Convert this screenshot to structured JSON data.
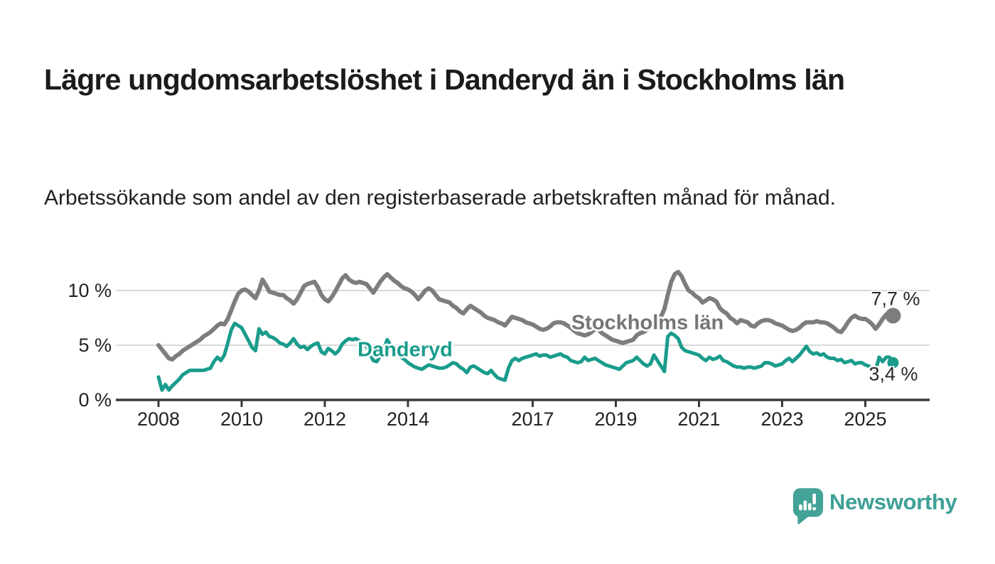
{
  "title": "Lägre ungdomsarbetslöshet i Danderyd än i Stockholms län",
  "subtitle": "Arbetssökande som andel av den registerbaserade arbetskraften månad för månad.",
  "branding": {
    "wordmark": "Newsworthy",
    "logo_icon": "newsworthy-speech-bubble-bar-chart-icon"
  },
  "colors": {
    "danderyd_line": "#1a9c8c",
    "stockholm_line": "#7d7d7d",
    "stockholm_label": "#757575",
    "gridline": "#d9d9d9",
    "axis": "#3a3a3a",
    "tick_text": "#222222",
    "annotation_text": "#2a2a2a",
    "logo_teal": "#43a396"
  },
  "chart_data": {
    "type": "line",
    "unit": "%",
    "frequency": "monthly",
    "x_start": "2008-01",
    "x_end": "2025-09",
    "grid": "horizontal",
    "ylim": [
      0,
      12.3
    ],
    "x_ticks": [
      {
        "year": 2008,
        "label": "2008"
      },
      {
        "year": 2010,
        "label": "2010"
      },
      {
        "year": 2012,
        "label": "2012"
      },
      {
        "year": 2014,
        "label": "2014"
      },
      {
        "year": 2017,
        "label": "2017"
      },
      {
        "year": 2019,
        "label": "2019"
      },
      {
        "year": 2021,
        "label": "2021"
      },
      {
        "year": 2023,
        "label": "2023"
      },
      {
        "year": 2025,
        "label": "2025"
      }
    ],
    "y_ticks": [
      {
        "value": 0,
        "label": "0 %"
      },
      {
        "value": 5,
        "label": "5 %"
      },
      {
        "value": 10,
        "label": "10 %"
      }
    ],
    "series": [
      {
        "name": "Stockholms län",
        "color": "#7d7d7d",
        "end_label": "7,7 %",
        "end_value": 7.7,
        "values": [
          5.0,
          4.6,
          4.2,
          3.8,
          3.7,
          4.0,
          4.2,
          4.5,
          4.7,
          4.9,
          5.1,
          5.3,
          5.5,
          5.8,
          6.0,
          6.2,
          6.5,
          6.8,
          7.0,
          6.9,
          7.4,
          8.2,
          9.0,
          9.7,
          10.0,
          10.1,
          9.9,
          9.6,
          9.3,
          10.0,
          11.0,
          10.5,
          9.9,
          9.8,
          9.7,
          9.6,
          9.6,
          9.3,
          9.1,
          8.8,
          9.2,
          9.8,
          10.4,
          10.6,
          10.7,
          10.8,
          10.3,
          9.6,
          9.2,
          9.0,
          9.4,
          9.9,
          10.5,
          11.1,
          11.4,
          11.0,
          10.8,
          10.7,
          10.8,
          10.7,
          10.6,
          10.2,
          9.8,
          10.3,
          10.8,
          11.2,
          11.5,
          11.2,
          10.9,
          10.7,
          10.4,
          10.2,
          10.1,
          9.9,
          9.6,
          9.2,
          9.6,
          10.0,
          10.2,
          10.0,
          9.6,
          9.2,
          9.1,
          9.0,
          8.9,
          8.6,
          8.4,
          8.1,
          7.9,
          8.3,
          8.6,
          8.4,
          8.2,
          8.0,
          7.7,
          7.5,
          7.4,
          7.3,
          7.1,
          7.0,
          6.8,
          7.2,
          7.6,
          7.5,
          7.4,
          7.3,
          7.1,
          7.0,
          6.9,
          6.7,
          6.5,
          6.4,
          6.5,
          6.7,
          7.0,
          7.1,
          7.1,
          7.0,
          6.8,
          6.6,
          6.3,
          6.1,
          6.0,
          5.9,
          6.0,
          6.2,
          6.5,
          6.4,
          6.1,
          5.9,
          5.7,
          5.5,
          5.4,
          5.3,
          5.2,
          5.3,
          5.4,
          5.5,
          5.9,
          6.1,
          6.2,
          6.4,
          6.6,
          6.9,
          7.3,
          7.6,
          8.3,
          9.6,
          10.8,
          11.5,
          11.7,
          11.3,
          10.6,
          10.0,
          9.8,
          9.5,
          9.3,
          8.9,
          9.1,
          9.3,
          9.2,
          9.0,
          8.4,
          8.1,
          7.9,
          7.5,
          7.3,
          7.0,
          7.3,
          7.2,
          7.1,
          6.8,
          6.7,
          7.0,
          7.2,
          7.3,
          7.3,
          7.2,
          7.0,
          6.9,
          6.8,
          6.6,
          6.4,
          6.3,
          6.4,
          6.6,
          6.9,
          7.1,
          7.1,
          7.1,
          7.2,
          7.1,
          7.1,
          7.0,
          6.8,
          6.6,
          6.3,
          6.2,
          6.6,
          7.1,
          7.5,
          7.7,
          7.5,
          7.4,
          7.4,
          7.2,
          6.9,
          6.5,
          6.9,
          7.4,
          7.8,
          8.0,
          7.7
        ]
      },
      {
        "name": "Danderyd",
        "color": "#1a9c8c",
        "end_label": "3,4 %",
        "end_value": 3.4,
        "values": [
          2.1,
          0.9,
          1.4,
          0.9,
          1.3,
          1.6,
          1.9,
          2.3,
          2.5,
          2.7,
          2.7,
          2.7,
          2.7,
          2.7,
          2.8,
          2.9,
          3.5,
          3.9,
          3.6,
          4.1,
          5.2,
          6.4,
          7.0,
          6.8,
          6.6,
          6.0,
          5.4,
          4.8,
          4.5,
          6.5,
          6.0,
          6.2,
          5.8,
          5.7,
          5.5,
          5.2,
          5.1,
          4.9,
          5.2,
          5.6,
          5.1,
          4.8,
          4.9,
          4.6,
          4.9,
          5.1,
          5.2,
          4.4,
          4.2,
          4.7,
          4.5,
          4.2,
          4.5,
          5.1,
          5.4,
          5.6,
          5.5,
          5.6,
          5.4,
          5.2,
          4.9,
          4.2,
          3.6,
          3.5,
          4.0,
          4.6,
          5.5,
          5.0,
          4.4,
          4.1,
          3.9,
          3.7,
          3.4,
          3.2,
          3.0,
          2.9,
          2.8,
          3.0,
          3.2,
          3.1,
          3.0,
          2.9,
          2.9,
          3.0,
          3.2,
          3.4,
          3.3,
          3.0,
          2.8,
          2.5,
          3.0,
          3.1,
          2.9,
          2.7,
          2.5,
          2.4,
          2.7,
          2.3,
          2.0,
          1.9,
          1.8,
          2.9,
          3.6,
          3.8,
          3.6,
          3.8,
          3.9,
          4.0,
          4.1,
          4.2,
          4.0,
          4.1,
          4.1,
          3.9,
          4.0,
          4.1,
          4.2,
          4.0,
          3.9,
          3.6,
          3.5,
          3.4,
          3.5,
          3.9,
          3.6,
          3.7,
          3.8,
          3.6,
          3.4,
          3.2,
          3.1,
          3.0,
          2.9,
          2.8,
          3.1,
          3.4,
          3.5,
          3.6,
          3.9,
          3.6,
          3.3,
          3.1,
          3.3,
          4.1,
          3.6,
          3.1,
          2.6,
          5.8,
          6.1,
          5.9,
          5.6,
          4.8,
          4.5,
          4.4,
          4.3,
          4.2,
          4.1,
          3.8,
          3.6,
          3.9,
          3.7,
          3.8,
          4.0,
          3.6,
          3.5,
          3.3,
          3.1,
          3.0,
          3.0,
          2.9,
          3.0,
          3.0,
          2.9,
          3.0,
          3.1,
          3.4,
          3.4,
          3.3,
          3.1,
          3.2,
          3.3,
          3.6,
          3.8,
          3.5,
          3.8,
          4.1,
          4.5,
          4.9,
          4.4,
          4.2,
          4.3,
          4.1,
          4.2,
          3.9,
          3.8,
          3.8,
          3.6,
          3.7,
          3.4,
          3.5,
          3.6,
          3.3,
          3.4,
          3.4,
          3.2,
          3.1,
          2.8,
          2.7,
          3.9,
          3.5,
          3.9,
          3.9,
          3.4
        ]
      }
    ]
  }
}
